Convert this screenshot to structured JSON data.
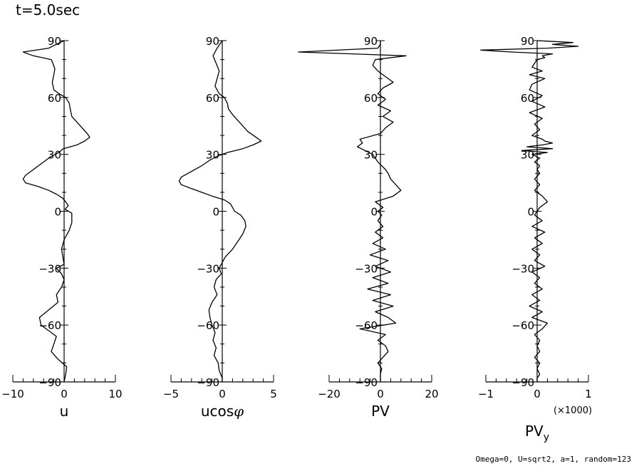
{
  "header": {
    "time_label": "t=5.0sec"
  },
  "footer": {
    "params": "Omega=0, U=sqrt2, a=1, random=123"
  },
  "chart_data": [
    {
      "type": "line",
      "xlabel": "u",
      "xlim": [
        -10,
        10
      ],
      "xticks": [
        -10,
        0,
        10
      ],
      "ylim": [
        -90,
        90
      ],
      "yticks": [
        90,
        60,
        30,
        0,
        -30,
        -60,
        -90
      ],
      "series": [
        {
          "y": [
            90,
            86,
            84,
            82,
            80,
            78,
            75,
            72,
            68,
            64,
            62,
            60,
            57,
            54,
            50,
            47,
            44,
            41,
            39,
            37,
            35,
            33,
            31,
            29,
            27,
            25,
            23,
            21,
            19,
            17,
            15,
            13,
            11,
            9,
            7,
            5,
            3,
            1,
            -1,
            -3,
            -6,
            -10,
            -15,
            -20,
            -25,
            -28,
            -30,
            -33,
            -36,
            -40,
            -44,
            -48,
            -52,
            -56,
            -60,
            -63,
            -66,
            -70,
            -74,
            -78,
            -82,
            -86,
            -90
          ],
          "x": [
            0,
            -3,
            -8,
            -6,
            -2.5,
            -2.2,
            -1.8,
            -2,
            -2.3,
            -2,
            -1,
            0.3,
            1,
            1.2,
            1.5,
            2.5,
            3.5,
            4.5,
            5,
            4,
            2.5,
            -0.2,
            -1,
            -2.5,
            -3.5,
            -4.5,
            -5.5,
            -6.5,
            -7.5,
            -8,
            -7.5,
            -5,
            -3,
            -1.5,
            -0.3,
            0.3,
            0.8,
            0.2,
            1.5,
            1.5,
            1.5,
            1,
            0,
            -0.5,
            -0.2,
            0,
            -1.5,
            -0.5,
            0,
            -0.5,
            -1.5,
            -1.2,
            -3,
            -4.8,
            -4.5,
            -3,
            -1.5,
            -2,
            -2.5,
            -1.2,
            0.5,
            0.3,
            0
          ]
        }
      ]
    },
    {
      "type": "line",
      "xlabel": "ucosφ",
      "xlim": [
        -5,
        5
      ],
      "xticks": [
        -5,
        0,
        5
      ],
      "ylim": [
        -90,
        90
      ],
      "yticks": [
        90,
        60,
        30,
        0,
        -30,
        -60,
        -90
      ],
      "series": [
        {
          "y": [
            90,
            86,
            82,
            78,
            74,
            70,
            66,
            62,
            60,
            57,
            54,
            51,
            48,
            45,
            42,
            39,
            37,
            35,
            33,
            31,
            29,
            27,
            24,
            21,
            18,
            16,
            14,
            12,
            10,
            8,
            6,
            4,
            2,
            0,
            -2,
            -5,
            -8,
            -12,
            -16,
            -20,
            -24,
            -27,
            -30,
            -33,
            -36,
            -40,
            -44,
            -48,
            -52,
            -56,
            -60,
            -64,
            -68,
            -72,
            -76,
            -80,
            -84,
            -88,
            -90
          ],
          "x": [
            0,
            -0.5,
            -0.9,
            -0.6,
            -0.3,
            -0.5,
            -0.7,
            -0.3,
            0.2,
            0.5,
            0.6,
            1,
            1.5,
            2,
            2.5,
            3.3,
            3.8,
            3,
            2,
            0.5,
            -0.5,
            -1.2,
            -2,
            -3,
            -4,
            -4.2,
            -4,
            -3,
            -2,
            -1,
            0.2,
            0.8,
            1,
            1.2,
            1.8,
            2.2,
            2.3,
            2,
            1.5,
            1,
            0.3,
            0,
            -0.3,
            -0.1,
            -0.6,
            -0.8,
            -0.5,
            -1,
            -1.3,
            -1.2,
            -1,
            -0.7,
            -0.9,
            -0.6,
            -0.8,
            -0.4,
            -0.3,
            0,
            0
          ]
        }
      ]
    },
    {
      "type": "line",
      "xlabel": "PV",
      "xlim": [
        -20,
        20
      ],
      "xticks": [
        -20,
        0,
        20
      ],
      "ylim": [
        -90,
        90
      ],
      "yticks": [
        90,
        60,
        30,
        0,
        -30,
        -60,
        -90
      ],
      "series": [
        {
          "y": [
            90,
            88,
            86,
            84,
            82,
            80,
            77,
            74,
            71,
            68,
            65,
            62,
            59,
            56,
            53,
            50,
            47,
            44,
            41,
            38,
            36,
            34,
            32,
            30,
            28,
            26,
            24,
            22,
            20,
            17,
            14,
            11,
            8,
            5,
            2,
            0,
            -2,
            -5,
            -8,
            -11,
            -14,
            -17,
            -20,
            -23,
            -26,
            -29,
            -32,
            -35,
            -38,
            -41,
            -44,
            -47,
            -50,
            -53,
            -56,
            -59,
            -62,
            -65,
            -68,
            -71,
            -74,
            -77,
            -80,
            -83,
            -86,
            -90
          ],
          "x": [
            0,
            0,
            -1,
            -32,
            10,
            -2,
            -3,
            -1,
            2,
            5,
            1,
            -1,
            2,
            -1,
            4,
            1,
            5,
            2,
            0,
            -8,
            -7,
            -9,
            -6,
            -3,
            -2,
            -1,
            0.5,
            2,
            3,
            4,
            6,
            8,
            5,
            -2,
            1,
            -1,
            0.5,
            -1,
            1,
            -2,
            1,
            -3,
            2,
            -4,
            3,
            -2,
            4,
            -3,
            3,
            -5,
            4,
            -3,
            5,
            -2,
            3,
            6,
            -8,
            2,
            -1,
            2,
            3,
            1,
            -1,
            0.5,
            0,
            0
          ]
        }
      ]
    },
    {
      "type": "line",
      "xlabel": "PVy",
      "x_scale_note": "(×1000)",
      "xlim": [
        -1,
        1
      ],
      "xticks": [
        -1,
        0,
        1
      ],
      "ylim": [
        -90,
        90
      ],
      "yticks": [
        90,
        60,
        30,
        0,
        -30,
        -60,
        -90
      ],
      "series": [
        {
          "y": [
            90,
            89,
            88,
            87,
            86,
            85,
            84,
            83,
            82,
            81,
            80,
            78,
            76,
            74,
            72,
            70,
            67,
            64,
            61,
            58,
            55,
            52,
            49,
            46,
            43,
            40,
            38,
            37,
            36,
            35,
            34,
            33,
            32,
            31,
            30,
            28,
            26,
            24,
            22,
            20,
            17,
            14,
            11,
            8,
            5,
            2,
            0,
            -2,
            -5,
            -8,
            -11,
            -14,
            -17,
            -20,
            -23,
            -26,
            -29,
            -32,
            -35,
            -38,
            -41,
            -44,
            -47,
            -50,
            -53,
            -56,
            -59,
            -62,
            -65,
            -68,
            -71,
            -74,
            -77,
            -80,
            -83,
            -86,
            -88,
            -90
          ],
          "x": [
            0,
            0.7,
            0.3,
            0.8,
            0.2,
            -1.1,
            -0.5,
            0.3,
            0.1,
            0.15,
            0,
            -0.05,
            -0.1,
            0.1,
            -0.15,
            0.15,
            -0.1,
            -0.15,
            0.1,
            -0.1,
            0.15,
            -0.15,
            0.1,
            -0.05,
            0.05,
            -0.1,
            0.1,
            0.15,
            0.3,
            0.1,
            -0.2,
            0.3,
            -0.3,
            0.2,
            -0.1,
            0.05,
            -0.05,
            0.05,
            0,
            0.05,
            -0.05,
            0.05,
            -0.05,
            0.1,
            0.2,
            0.05,
            0,
            -0.05,
            0.1,
            -0.1,
            0.15,
            -0.05,
            0.1,
            -0.1,
            0.05,
            -0.05,
            0.15,
            -0.1,
            0.05,
            -0.05,
            0.1,
            -0.1,
            0.05,
            -0.15,
            0.1,
            -0.1,
            0.2,
            0.1,
            -0.05,
            0.05,
            0,
            0.05,
            -0.05,
            0.05,
            0,
            0.05,
            0,
            0
          ]
        }
      ]
    }
  ]
}
